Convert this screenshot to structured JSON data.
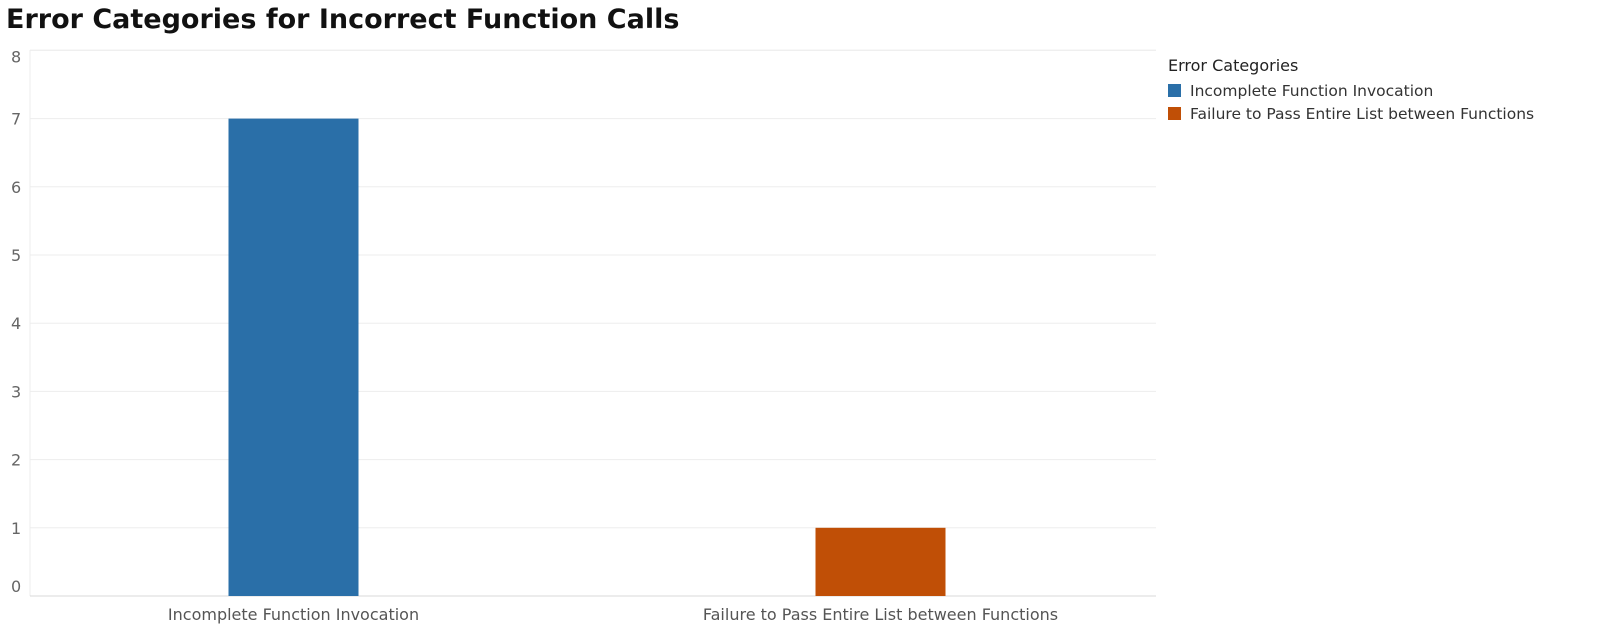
{
  "chart_data": {
    "type": "bar",
    "title": "Error Categories for Incorrect Function Calls",
    "categories": [
      "Incomplete Function Invocation",
      "Failure to Pass Entire List between Functions"
    ],
    "values": [
      7,
      1
    ],
    "colors": [
      "#2a6fa8",
      "#c04f06"
    ],
    "ylim": [
      0,
      8
    ],
    "yticks": [
      "0",
      "1",
      "2",
      "3",
      "4",
      "5",
      "6",
      "7",
      "8"
    ],
    "grid": true,
    "legend": {
      "title": "Error Categories",
      "placement": "top-right",
      "items": [
        "Incomplete Function Invocation",
        "Failure to Pass Entire List between Functions"
      ]
    }
  }
}
